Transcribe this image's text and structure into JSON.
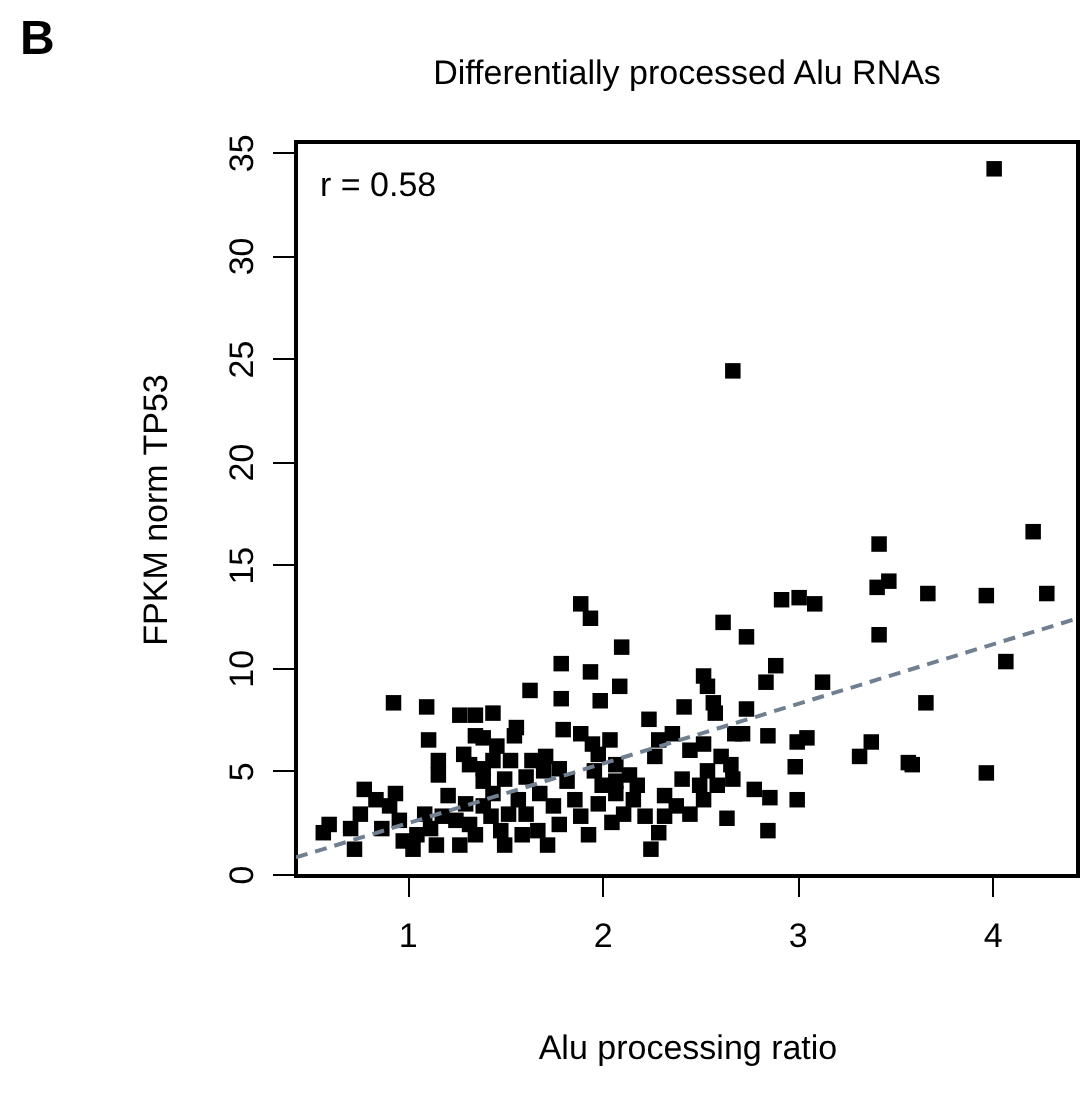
{
  "chart_data": {
    "type": "scatter",
    "title": "Differentially processed Alu RNAs",
    "xlabel": "Alu processing ratio",
    "ylabel": "FPKM norm TP53",
    "annotations": [
      "r = 0.58",
      "B"
    ],
    "xlim": [
      0.43,
      4.44
    ],
    "ylim": [
      -0.1,
      35.5
    ],
    "xticks": [
      1,
      2,
      3,
      4
    ],
    "yticks": [
      0,
      5,
      10,
      15,
      20,
      25,
      30,
      35
    ],
    "grid": false,
    "marker": "square",
    "series": [
      {
        "type": "scatter",
        "color": "#000000",
        "x": [
          4.01,
          2.67,
          4.21,
          3.42,
          3.41,
          3.47,
          3.67,
          3.97,
          4.28,
          2.92,
          3.01,
          3.09,
          3.42,
          2.62,
          2.74,
          4.07,
          2.89,
          2.84,
          3.13,
          3.66,
          2.74,
          2.85,
          3.0,
          3.05,
          3.38,
          3.32,
          3.57,
          3.59,
          3.97,
          2.99,
          3.0,
          2.86,
          2.78,
          2.85,
          2.64,
          1.89,
          1.94,
          2.1,
          1.79,
          1.94,
          2.09,
          1.63,
          1.79,
          1.99,
          0.93,
          1.1,
          1.27,
          1.35,
          1.44,
          2.24,
          2.42,
          2.52,
          2.54,
          2.57,
          2.58,
          2.68,
          2.72,
          1.56,
          1.55,
          1.11,
          1.35,
          1.39,
          1.46,
          1.29,
          1.16,
          1.16,
          1.32,
          1.39,
          1.44,
          1.53,
          1.64,
          1.71,
          1.7,
          1.78,
          1.8,
          1.89,
          1.95,
          2.04,
          1.98,
          2.07,
          2.14,
          2.18,
          2.29,
          2.36,
          2.27,
          2.45,
          2.52,
          2.61,
          2.66,
          2.67,
          2.54,
          2.5,
          2.41,
          2.32,
          2.38,
          2.45,
          2.52,
          2.59,
          2.25,
          2.29,
          2.32,
          2.22,
          2.16,
          2.11,
          2.05,
          2.07,
          2.0,
          1.98,
          1.93,
          1.89,
          1.86,
          1.82,
          1.78,
          1.75,
          1.68,
          1.72,
          1.67,
          1.61,
          1.59,
          1.57,
          1.52,
          1.5,
          1.48,
          1.43,
          1.44,
          1.39,
          1.35,
          1.32,
          1.3,
          1.27,
          1.25,
          1.21,
          1.18,
          1.15,
          1.12,
          1.09,
          1.05,
          1.03,
          0.98,
          0.96,
          0.94,
          0.91,
          0.87,
          0.84,
          0.78,
          0.76,
          0.73,
          0.71,
          0.6,
          0.57,
          1.96,
          2.07,
          1.61,
          1.5,
          1.39
        ],
        "values": [
          34.2,
          24.4,
          16.6,
          16.0,
          13.9,
          14.2,
          13.6,
          13.5,
          13.6,
          13.3,
          13.4,
          13.1,
          11.6,
          12.2,
          11.5,
          10.3,
          10.1,
          9.3,
          9.3,
          8.3,
          8.0,
          6.7,
          6.4,
          6.6,
          6.4,
          5.7,
          5.4,
          5.3,
          4.9,
          5.2,
          3.6,
          3.7,
          4.1,
          2.1,
          2.7,
          13.1,
          12.4,
          11.0,
          10.2,
          9.8,
          9.1,
          8.9,
          8.5,
          8.4,
          8.3,
          8.1,
          7.7,
          7.7,
          7.8,
          7.5,
          8.1,
          9.6,
          9.1,
          8.3,
          7.8,
          6.8,
          6.8,
          7.1,
          6.7,
          6.5,
          6.7,
          6.6,
          6.2,
          5.8,
          5.5,
          4.8,
          5.3,
          5.1,
          5.5,
          5.5,
          5.5,
          5.7,
          5.0,
          5.1,
          7.0,
          6.8,
          6.3,
          6.5,
          5.8,
          5.3,
          4.8,
          4.3,
          6.5,
          6.8,
          5.7,
          6.0,
          6.3,
          5.7,
          5.3,
          4.6,
          5.0,
          4.3,
          4.6,
          3.8,
          3.3,
          2.9,
          3.6,
          4.3,
          1.2,
          2.0,
          2.8,
          2.8,
          3.6,
          2.9,
          2.5,
          3.9,
          4.3,
          3.4,
          1.9,
          2.8,
          3.6,
          4.5,
          2.4,
          3.3,
          3.9,
          1.4,
          2.1,
          2.9,
          1.9,
          3.6,
          2.9,
          1.4,
          2.1,
          2.8,
          3.9,
          3.3,
          1.9,
          2.4,
          3.4,
          1.4,
          2.6,
          3.8,
          2.8,
          1.4,
          2.2,
          2.9,
          1.9,
          1.2,
          1.6,
          2.6,
          3.9,
          3.3,
          2.2,
          3.6,
          4.1,
          2.9,
          1.2,
          2.2,
          2.4,
          2.0,
          5.0,
          4.5,
          4.7,
          4.6,
          4.5
        ]
      },
      {
        "type": "line",
        "color": "#708090",
        "line_style": "dashed",
        "marker": "none",
        "x": [
          0.43,
          4.44
        ],
        "values": [
          0.8,
          12.4
        ]
      }
    ]
  }
}
